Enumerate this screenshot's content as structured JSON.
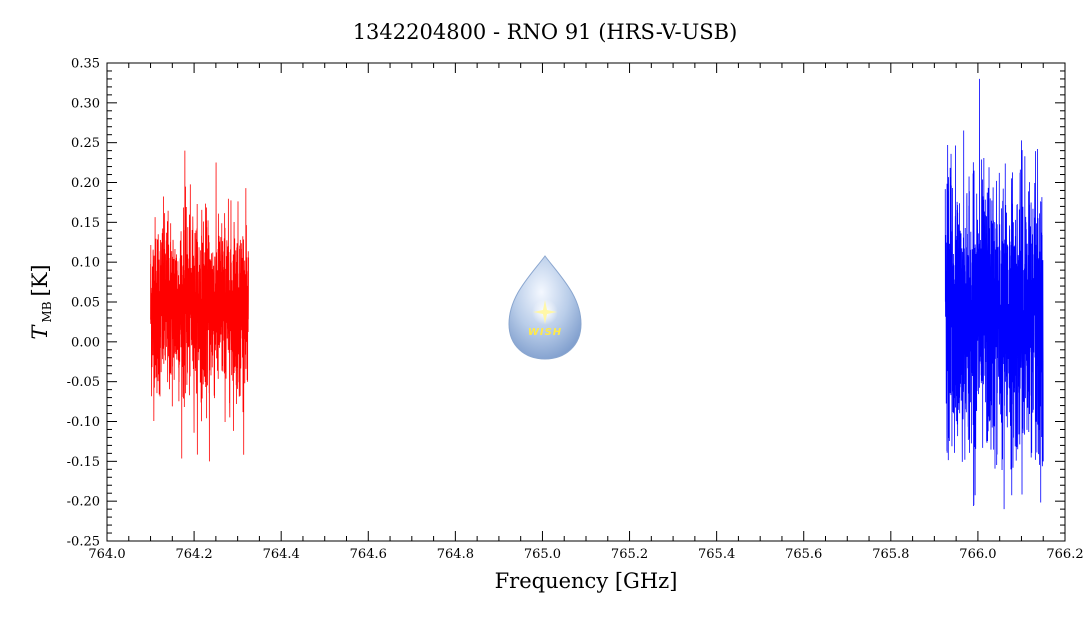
{
  "chart_data": {
    "type": "line",
    "title": "1342204800 - RNO 91 (HRS-V-USB)",
    "xlabel": "Frequency [GHz]",
    "ylabel_main": "T",
    "ylabel_sub": "MB",
    "ylabel_unit": "[K]",
    "xlim": [
      764.0,
      766.2
    ],
    "ylim": [
      -0.25,
      0.35
    ],
    "xticks": [
      764.0,
      764.2,
      764.4,
      764.6,
      764.8,
      765.0,
      765.2,
      765.4,
      765.6,
      765.8,
      766.0,
      766.2
    ],
    "xtick_labels": [
      "764.0",
      "764.2",
      "764.4",
      "764.6",
      "764.8",
      "765.0",
      "765.2",
      "765.4",
      "765.6",
      "765.8",
      "766.0",
      "766.2"
    ],
    "yticks": [
      -0.25,
      -0.2,
      -0.15,
      -0.1,
      -0.05,
      0.0,
      0.05,
      0.1,
      0.15,
      0.2,
      0.25,
      0.3,
      0.35
    ],
    "ytick_labels": [
      "-0.25",
      "-0.20",
      "-0.15",
      "-0.10",
      "-0.05",
      "0.00",
      "0.05",
      "0.10",
      "0.15",
      "0.20",
      "0.25",
      "0.30",
      "0.35"
    ],
    "grid": false,
    "series": [
      {
        "color": "#ff0000",
        "x_range": [
          764.1,
          764.325
        ],
        "baseline": 0.045,
        "noise_rms": 0.055,
        "max": 0.24,
        "min": -0.15
      },
      {
        "color": "#0000ff",
        "x_range": [
          765.925,
          766.15
        ],
        "baseline": 0.03,
        "noise_rms": 0.085,
        "max": 0.33,
        "min": -0.21
      }
    ]
  },
  "logo": {
    "text": "WISH",
    "icon": "water-drop-star-icon"
  }
}
